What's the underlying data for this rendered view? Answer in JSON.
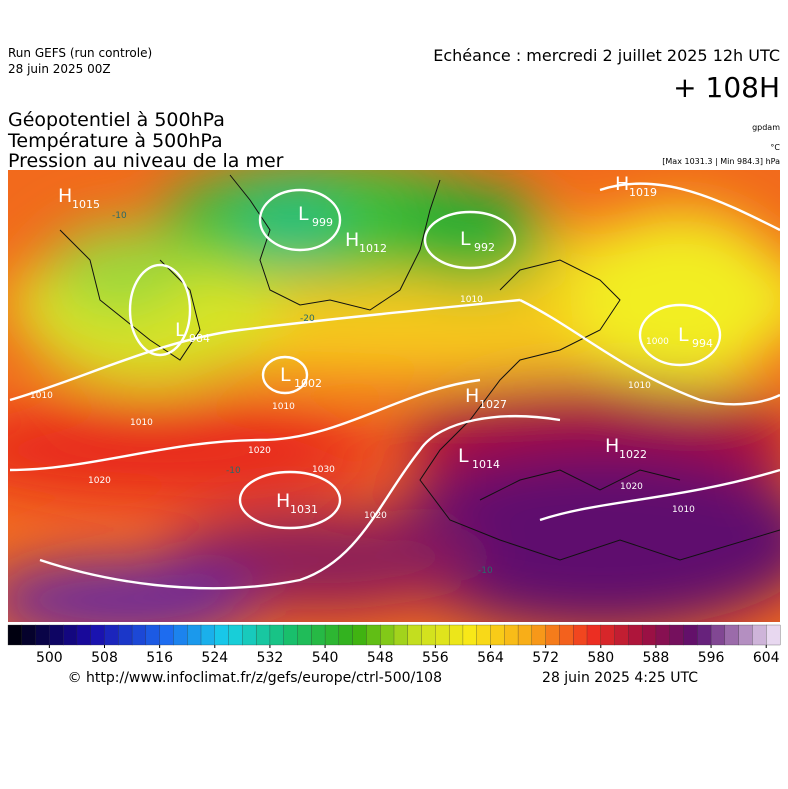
{
  "header": {
    "run": "Run GEFS (run controle)",
    "run_date": "28 juin 2025 00Z",
    "valid": "Echéance : mercredi 2 juillet 2025 12h UTC",
    "lead": "+ 108H",
    "fields": [
      "Géopotentiel à 500hPa",
      "Température à 500hPa",
      "Pression au niveau de la mer"
    ],
    "units": [
      "gpdam",
      "°C",
      "[Max 1031.3 | Min 984.3] hPa"
    ]
  },
  "centers": [
    {
      "letter": "H",
      "value": "1015"
    },
    {
      "letter": "L",
      "value": "999"
    },
    {
      "letter": "H",
      "value": "1012"
    },
    {
      "letter": "L",
      "value": "992"
    },
    {
      "letter": "H",
      "value": "1019"
    },
    {
      "letter": "L",
      "value": "994"
    },
    {
      "letter": "L",
      "value": "984"
    },
    {
      "letter": "L",
      "value": "1002"
    },
    {
      "letter": "H",
      "value": "1027"
    },
    {
      "letter": "L",
      "value": "1014"
    },
    {
      "letter": "H",
      "value": "1022"
    },
    {
      "letter": "H",
      "value": "1031"
    }
  ],
  "isobar_labels": [
    "1010",
    "1010",
    "1010",
    "1020",
    "1020",
    "1030",
    "1020",
    "1010",
    "1000",
    "1020",
    "1010",
    "1010"
  ],
  "temperature_labels": [
    "-20",
    "-10",
    "-10",
    "-10"
  ],
  "colorbar": {
    "range": [
      494,
      606
    ],
    "ticks": [
      500,
      508,
      516,
      524,
      532,
      540,
      548,
      556,
      564,
      572,
      580,
      588,
      596,
      604
    ]
  },
  "footer": {
    "source": "© http://www.infoclimat.fr/z/gefs/europe/ctrl-500/108",
    "generated": "28 juin 2025  4:25 UTC"
  }
}
